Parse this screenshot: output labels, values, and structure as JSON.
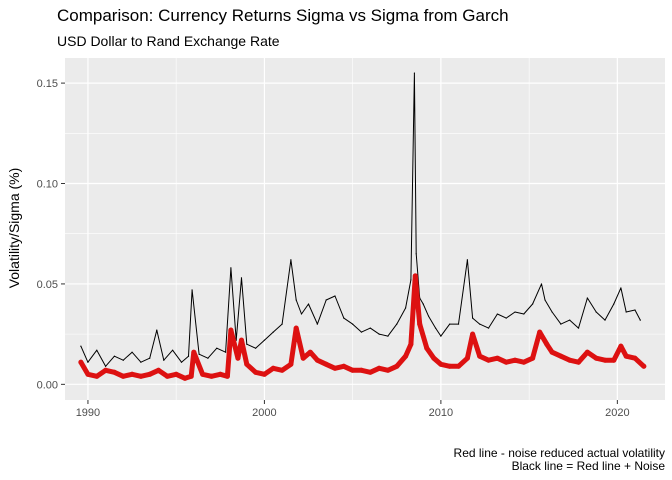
{
  "chart_data": {
    "type": "line",
    "title": "Comparison: Currency Returns Sigma vs Sigma from Garch",
    "subtitle": "USD Dollar to Rand Exchange Rate",
    "xlabel": "",
    "ylabel": "Volatility/Sigma (%)",
    "xlim": [
      1988.7,
      2022.7
    ],
    "ylim": [
      -0.0078,
      0.1625
    ],
    "x_ticks": [
      1990,
      2000,
      2010,
      2020
    ],
    "x_tick_labels": [
      "1990",
      "2000",
      "2010",
      "2020"
    ],
    "y_ticks": [
      0.0,
      0.05,
      0.1,
      0.15
    ],
    "y_tick_labels": [
      "0.00",
      "0.05",
      "0.10",
      "0.15"
    ],
    "grid": true,
    "background": "#ebebeb",
    "grid_color": "#ffffff",
    "caption": [
      "Red line - noise reduced actual volatility",
      "Black line = Red line + Noise"
    ],
    "series": [
      {
        "color": "#000000",
        "width": 1,
        "x": [
          1989.6,
          1990.0,
          1990.5,
          1991.0,
          1991.5,
          1992.0,
          1992.5,
          1993.0,
          1993.5,
          1993.9,
          1994.3,
          1994.8,
          1995.3,
          1995.7,
          1995.9,
          1996.3,
          1996.8,
          1997.3,
          1997.8,
          1998.1,
          1998.4,
          1998.7,
          1999.0,
          1999.5,
          2000.0,
          2000.5,
          2001.0,
          2001.5,
          2001.8,
          2002.1,
          2002.5,
          2003.0,
          2003.5,
          2004.0,
          2004.5,
          2005.0,
          2005.5,
          2006.0,
          2006.5,
          2007.0,
          2007.5,
          2008.0,
          2008.3,
          2008.5,
          2008.6,
          2008.8,
          2009.0,
          2009.3,
          2009.7,
          2010.0,
          2010.5,
          2011.0,
          2011.5,
          2011.8,
          2012.2,
          2012.7,
          2013.2,
          2013.7,
          2014.2,
          2014.7,
          2015.2,
          2015.7,
          2015.9,
          2016.3,
          2016.8,
          2017.3,
          2017.8,
          2018.3,
          2018.8,
          2019.3,
          2019.8,
          2020.2,
          2020.5,
          2021.0,
          2021.3
        ],
        "y": [
          0.019,
          0.011,
          0.017,
          0.009,
          0.014,
          0.012,
          0.016,
          0.011,
          0.013,
          0.027,
          0.012,
          0.017,
          0.011,
          0.014,
          0.047,
          0.015,
          0.013,
          0.018,
          0.016,
          0.058,
          0.022,
          0.053,
          0.02,
          0.018,
          0.022,
          0.026,
          0.03,
          0.062,
          0.042,
          0.035,
          0.04,
          0.03,
          0.042,
          0.044,
          0.033,
          0.03,
          0.026,
          0.028,
          0.025,
          0.024,
          0.03,
          0.038,
          0.052,
          0.155,
          0.065,
          0.043,
          0.04,
          0.034,
          0.028,
          0.024,
          0.03,
          0.03,
          0.062,
          0.033,
          0.03,
          0.028,
          0.035,
          0.033,
          0.036,
          0.035,
          0.04,
          0.05,
          0.042,
          0.036,
          0.03,
          0.032,
          0.028,
          0.043,
          0.036,
          0.032,
          0.04,
          0.048,
          0.036,
          0.037,
          0.032
        ]
      },
      {
        "color": "#dd1111",
        "width": 5,
        "x": [
          1989.6,
          1990.0,
          1990.5,
          1991.0,
          1991.5,
          1992.0,
          1992.5,
          1993.0,
          1993.5,
          1994.0,
          1994.5,
          1995.0,
          1995.5,
          1995.85,
          1996.0,
          1996.5,
          1997.0,
          1997.5,
          1997.9,
          1998.1,
          1998.5,
          1998.7,
          1999.0,
          1999.5,
          2000.0,
          2000.5,
          2001.0,
          2001.5,
          2001.8,
          2002.2,
          2002.6,
          2003.0,
          2003.5,
          2004.0,
          2004.5,
          2005.0,
          2005.5,
          2006.0,
          2006.5,
          2007.0,
          2007.5,
          2008.0,
          2008.3,
          2008.55,
          2008.8,
          2009.2,
          2009.6,
          2010.0,
          2010.5,
          2011.0,
          2011.5,
          2011.8,
          2012.2,
          2012.7,
          2013.2,
          2013.7,
          2014.2,
          2014.7,
          2015.2,
          2015.6,
          2016.0,
          2016.3,
          2016.8,
          2017.3,
          2017.8,
          2018.3,
          2018.8,
          2019.3,
          2019.8,
          2020.2,
          2020.5,
          2021.0,
          2021.5
        ],
        "y": [
          0.011,
          0.005,
          0.004,
          0.007,
          0.006,
          0.004,
          0.005,
          0.004,
          0.005,
          0.007,
          0.004,
          0.005,
          0.003,
          0.004,
          0.016,
          0.005,
          0.004,
          0.005,
          0.004,
          0.027,
          0.013,
          0.022,
          0.01,
          0.006,
          0.005,
          0.008,
          0.007,
          0.01,
          0.028,
          0.013,
          0.016,
          0.012,
          0.01,
          0.008,
          0.009,
          0.007,
          0.007,
          0.006,
          0.008,
          0.007,
          0.009,
          0.014,
          0.02,
          0.054,
          0.03,
          0.018,
          0.013,
          0.01,
          0.009,
          0.009,
          0.013,
          0.025,
          0.014,
          0.012,
          0.013,
          0.011,
          0.012,
          0.011,
          0.013,
          0.026,
          0.02,
          0.016,
          0.014,
          0.012,
          0.011,
          0.016,
          0.013,
          0.012,
          0.012,
          0.019,
          0.014,
          0.013,
          0.009
        ]
      }
    ]
  }
}
